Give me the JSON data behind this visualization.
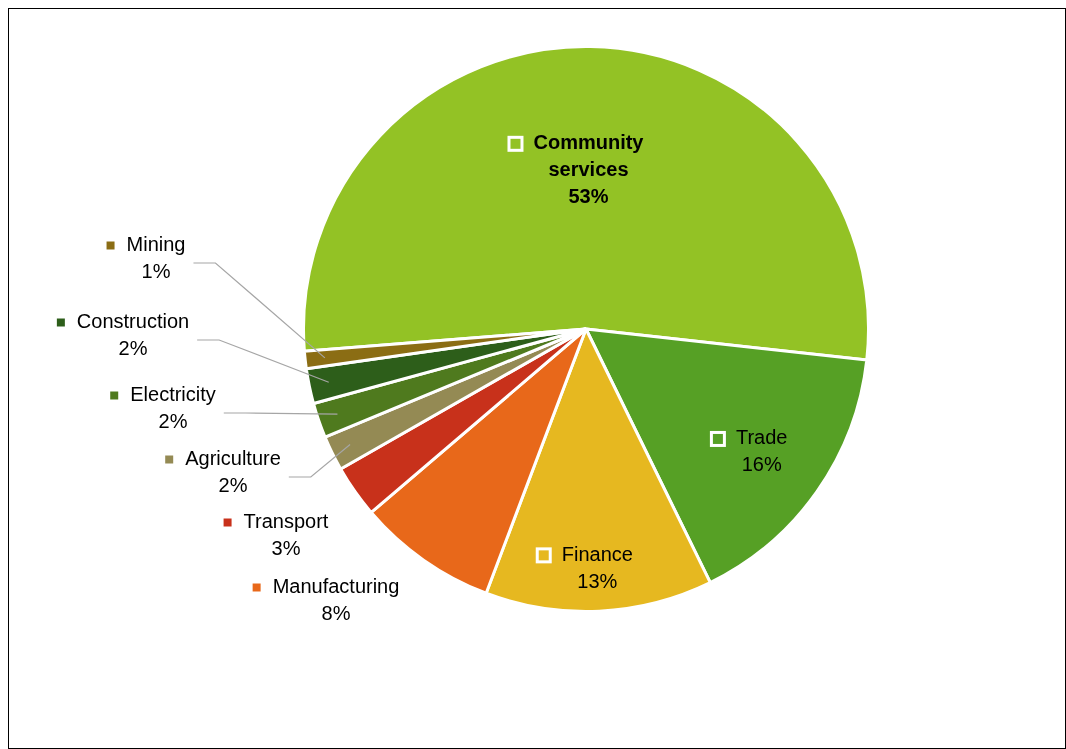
{
  "chart_data": {
    "type": "pie",
    "categories": [
      "Community services",
      "Trade",
      "Finance",
      "Manufacturing",
      "Transport",
      "Agriculture",
      "Electricity",
      "Construction",
      "Mining"
    ],
    "values": [
      53,
      16,
      13,
      8,
      3,
      2,
      2,
      2,
      1
    ],
    "value_labels": [
      "53%",
      "16%",
      "13%",
      "8%",
      "3%",
      "2%",
      "2%",
      "2%",
      "1%"
    ],
    "colors": [
      "#93c225",
      "#56a025",
      "#e6b820",
      "#e8681a",
      "#c8311b",
      "#948a54",
      "#4f7a1e",
      "#2d5e1a",
      "#8b6d14"
    ],
    "legend": "left"
  }
}
